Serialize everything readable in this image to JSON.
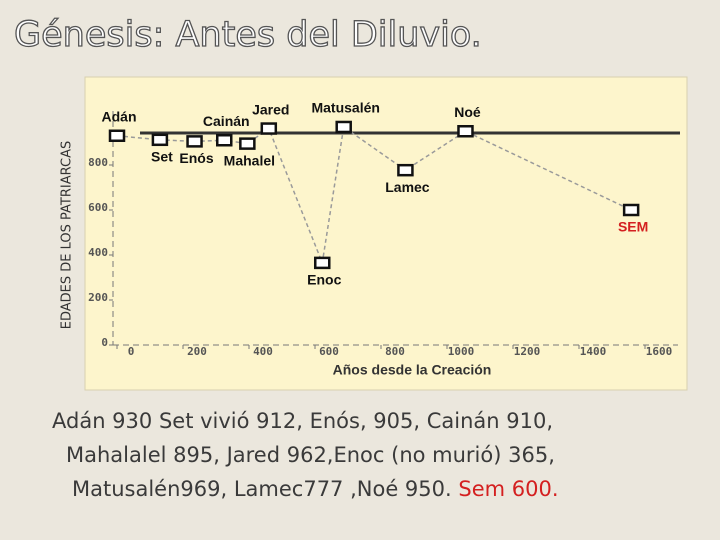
{
  "slide_title": "Génesis: Antes del Diluvio.",
  "chart_data": {
    "type": "scatter",
    "ylabel": "EDADES DE LOS PATRIARCAS",
    "xlabel": "Años desde la Creación",
    "categories": [
      "Adán",
      "Set",
      "Enós",
      "Cainán",
      "Mahalel",
      "Jared",
      "Enoc",
      "Matusalén",
      "Lamec",
      "Noé",
      "SEM"
    ],
    "x": [
      0,
      130,
      235,
      325,
      395,
      460,
      622,
      687,
      874,
      1056,
      1558
    ],
    "values": [
      930,
      912,
      905,
      910,
      895,
      962,
      365,
      969,
      777,
      950,
      600
    ],
    "label_colors": [
      "#111111",
      "#111111",
      "#111111",
      "#111111",
      "#111111",
      "#111111",
      "#111111",
      "#111111",
      "#111111",
      "#111111",
      "#d42020"
    ],
    "line_color": "#9a9a9a",
    "xlim": [
      0,
      1700
    ],
    "xticks": [
      0,
      200,
      400,
      600,
      800,
      1000,
      1200,
      1400,
      1600
    ],
    "ylim": [
      0,
      1040
    ],
    "yticks": [
      0,
      200,
      400,
      600,
      800
    ]
  },
  "caption": {
    "lines": [
      "Adán 930 Set vivió 912, Enós, 905, Cainán 910,",
      "Mahalalel 895, Jared 962,Enoc (no murió) 365,",
      "Matusalén969, Lamec777 ,Noé 950."
    ],
    "highlight": "Sem 600.",
    "highlight_color": "#d42020"
  }
}
